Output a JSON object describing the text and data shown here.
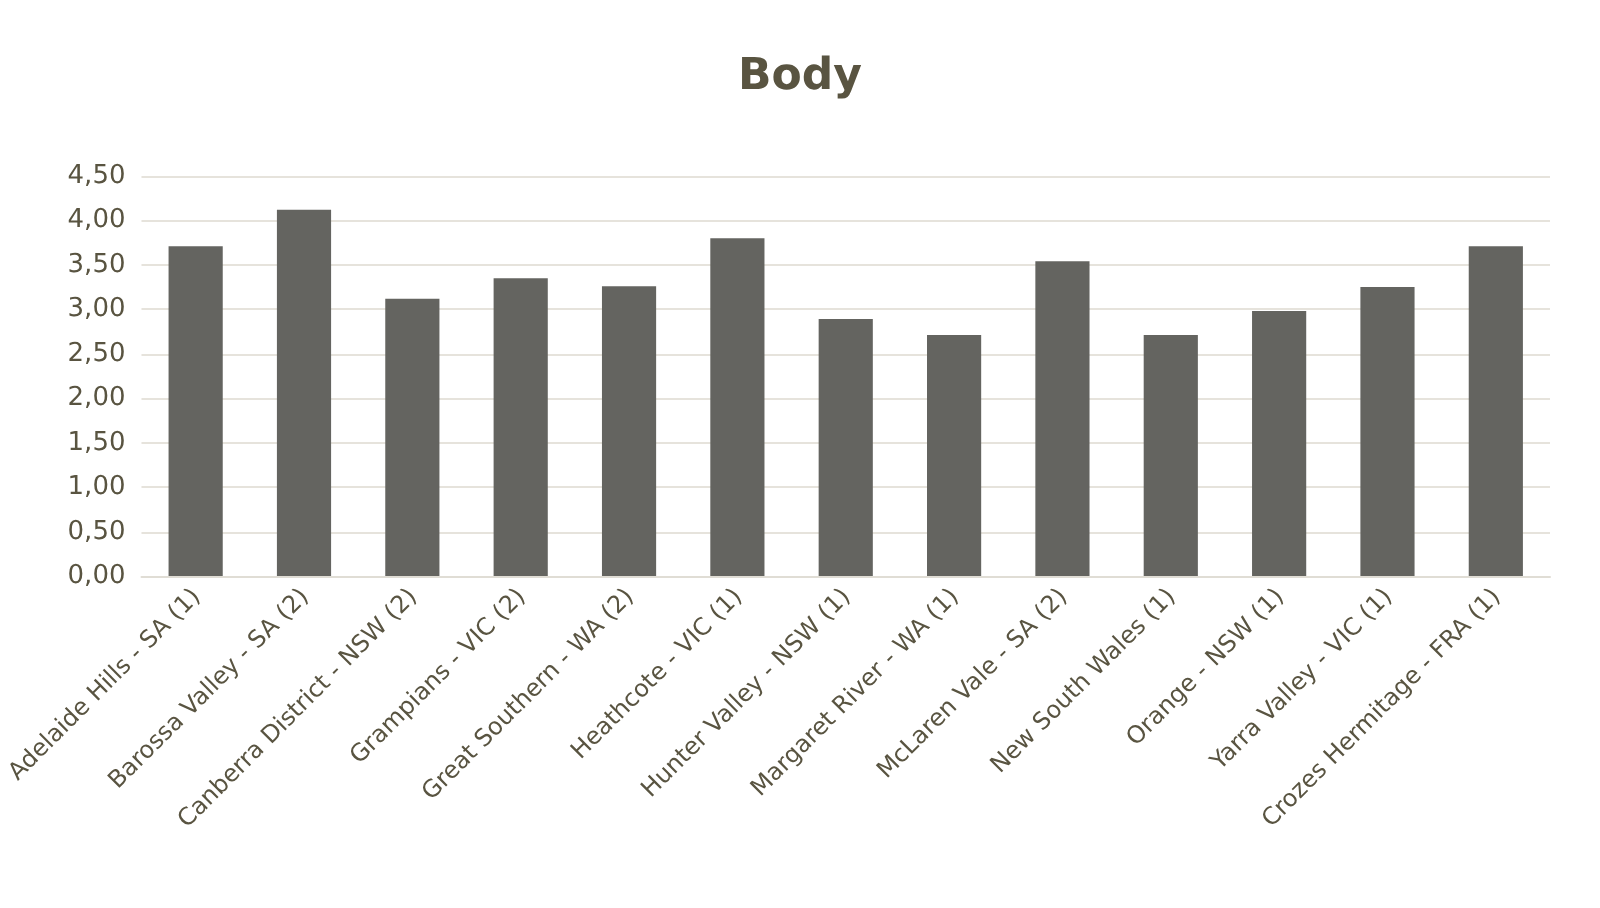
{
  "chart_data": {
    "type": "bar",
    "title": "Body",
    "categories": [
      "Adelaide Hills - SA (1)",
      "Barossa Valley - SA (2)",
      "Canberra District - NSW (2)",
      "Grampians - VIC (2)",
      "Great Southern - WA (2)",
      "Heathcote - VIC (1)",
      "Hunter Valley - NSW (1)",
      "Margaret River - WA (1)",
      "McLaren Vale - SA (2)",
      "New South Wales (1)",
      "Orange - NSW (1)",
      "Yarra Valley - VIC (1)",
      "Crozes Hermitage - FRA (1)"
    ],
    "values": [
      3.71,
      4.12,
      3.12,
      3.35,
      3.26,
      3.8,
      2.89,
      2.71,
      3.54,
      2.71,
      2.98,
      3.25,
      3.71
    ],
    "color": "#646460",
    "ylim": [
      0,
      4.5
    ],
    "yticks": [
      {
        "value": 0,
        "label": "0,00"
      },
      {
        "value": 0.5,
        "label": "0,50"
      },
      {
        "value": 1,
        "label": "1,00"
      },
      {
        "value": 1.5,
        "label": "1,50"
      },
      {
        "value": 2,
        "label": "2,00"
      },
      {
        "value": 2.5,
        "label": "2,50"
      },
      {
        "value": 3,
        "label": "3,00"
      },
      {
        "value": 3.5,
        "label": "3,50"
      },
      {
        "value": 4,
        "label": "4,00"
      },
      {
        "value": 4.5,
        "label": "4,50"
      }
    ],
    "grid": "y"
  }
}
